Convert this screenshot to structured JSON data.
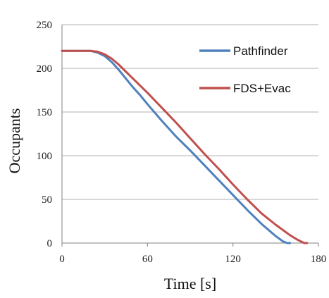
{
  "chart_data": {
    "type": "line",
    "title": "",
    "xlabel": "Time [s]",
    "ylabel": "Occupants",
    "xlim": [
      0,
      180
    ],
    "ylim": [
      0,
      250
    ],
    "x_ticks": [
      0,
      60,
      120,
      180
    ],
    "y_ticks": [
      0,
      50,
      100,
      150,
      200,
      250
    ],
    "grid": "horizontal",
    "legend_position": "top-right",
    "series": [
      {
        "name": "Pathfinder",
        "color": "#4f81bd",
        "x": [
          0,
          5,
          10,
          15,
          20,
          25,
          30,
          35,
          40,
          45,
          50,
          55,
          60,
          70,
          80,
          90,
          100,
          110,
          120,
          130,
          140,
          150,
          155,
          158,
          160
        ],
        "y": [
          220,
          220,
          220,
          220,
          220,
          218,
          214,
          207,
          198,
          188,
          178,
          169,
          159,
          140,
          122,
          106,
          89,
          72,
          55,
          38,
          22,
          8,
          2,
          0,
          0
        ]
      },
      {
        "name": "FDS+Evac",
        "color": "#c0504d",
        "x": [
          0,
          5,
          10,
          15,
          20,
          25,
          30,
          35,
          40,
          45,
          50,
          55,
          60,
          70,
          80,
          90,
          100,
          110,
          120,
          130,
          140,
          150,
          160,
          165,
          170,
          172
        ],
        "y": [
          220,
          220,
          220,
          220,
          220,
          219,
          216,
          211,
          204,
          196,
          188,
          180,
          172,
          155,
          138,
          120,
          102,
          85,
          67,
          50,
          34,
          21,
          9,
          4,
          0,
          0
        ]
      }
    ]
  }
}
